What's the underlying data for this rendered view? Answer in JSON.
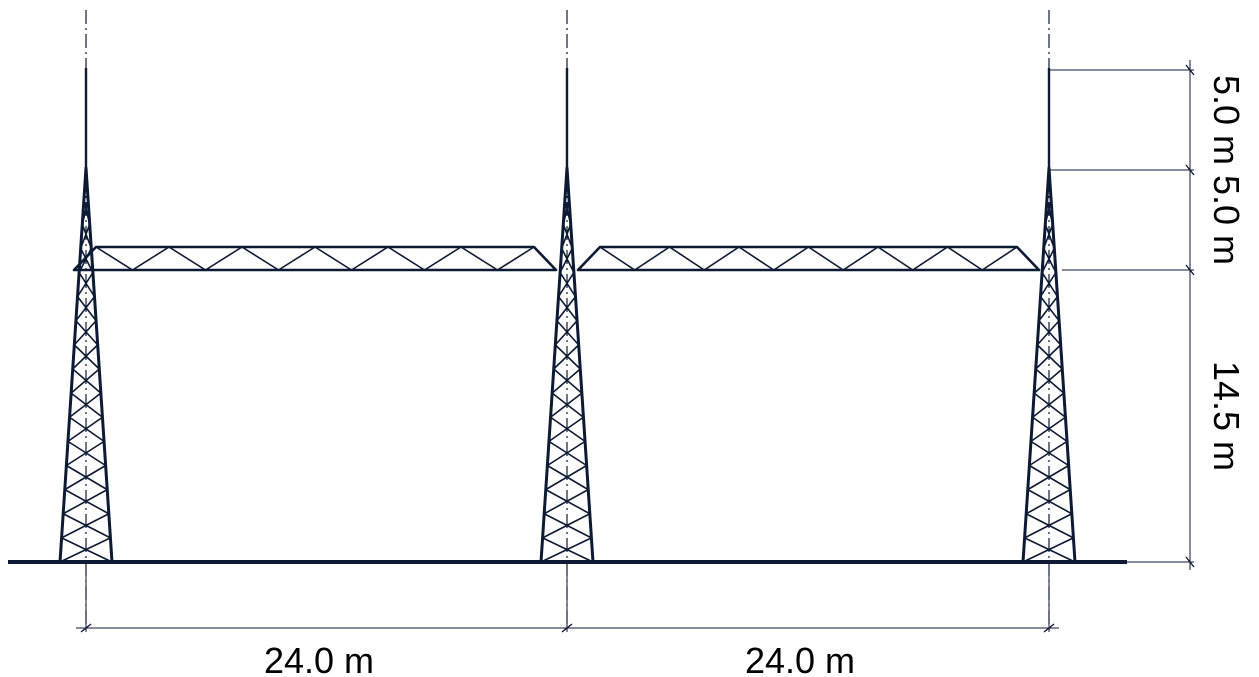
{
  "colors": {
    "structure": "#0d1a33",
    "background": "#ffffff"
  },
  "diagram": {
    "towers": [
      {
        "name": "left-tower"
      },
      {
        "name": "middle-tower"
      },
      {
        "name": "right-tower"
      }
    ],
    "spans": [
      {
        "name": "left-span",
        "label": "24.0 m"
      },
      {
        "name": "right-span",
        "label": "24.0 m"
      }
    ],
    "heights": [
      {
        "name": "top-mast",
        "label": "5.0 m"
      },
      {
        "name": "tower-top",
        "label": "5.0 m"
      },
      {
        "name": "tower-base",
        "label": "14.5 m"
      }
    ]
  }
}
